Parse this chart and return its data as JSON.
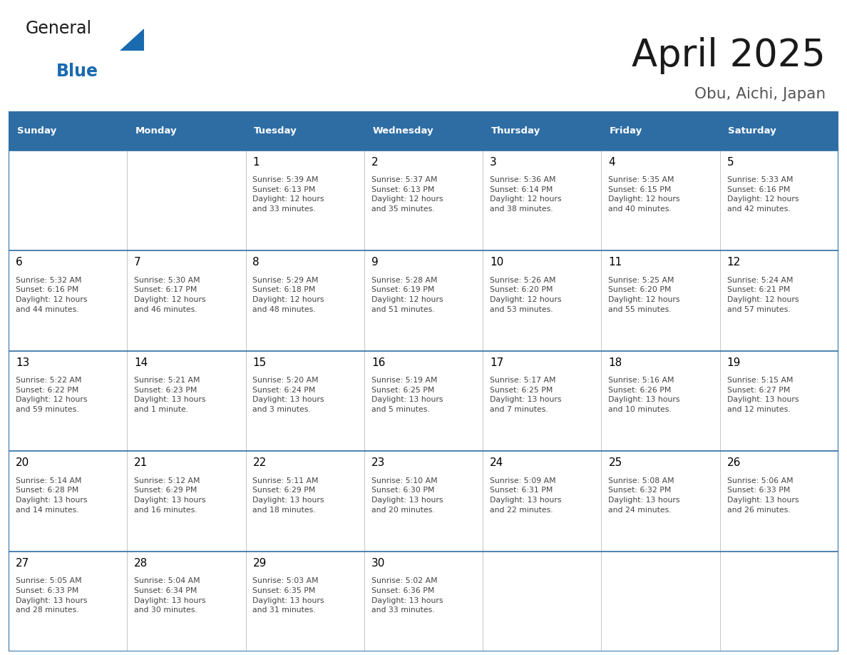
{
  "title": "April 2025",
  "subtitle": "Obu, Aichi, Japan",
  "header_bg_color": "#2E6DA4",
  "header_text_color": "#FFFFFF",
  "grid_line_color": "#2E6DA4",
  "day_number_color": "#000000",
  "cell_text_color": "#444444",
  "cell_bg_color": "#FFFFFF",
  "days_of_week": [
    "Sunday",
    "Monday",
    "Tuesday",
    "Wednesday",
    "Thursday",
    "Friday",
    "Saturday"
  ],
  "calendar_data": [
    [
      {
        "day": 0,
        "info": ""
      },
      {
        "day": 0,
        "info": ""
      },
      {
        "day": 1,
        "info": "Sunrise: 5:39 AM\nSunset: 6:13 PM\nDaylight: 12 hours\nand 33 minutes."
      },
      {
        "day": 2,
        "info": "Sunrise: 5:37 AM\nSunset: 6:13 PM\nDaylight: 12 hours\nand 35 minutes."
      },
      {
        "day": 3,
        "info": "Sunrise: 5:36 AM\nSunset: 6:14 PM\nDaylight: 12 hours\nand 38 minutes."
      },
      {
        "day": 4,
        "info": "Sunrise: 5:35 AM\nSunset: 6:15 PM\nDaylight: 12 hours\nand 40 minutes."
      },
      {
        "day": 5,
        "info": "Sunrise: 5:33 AM\nSunset: 6:16 PM\nDaylight: 12 hours\nand 42 minutes."
      }
    ],
    [
      {
        "day": 6,
        "info": "Sunrise: 5:32 AM\nSunset: 6:16 PM\nDaylight: 12 hours\nand 44 minutes."
      },
      {
        "day": 7,
        "info": "Sunrise: 5:30 AM\nSunset: 6:17 PM\nDaylight: 12 hours\nand 46 minutes."
      },
      {
        "day": 8,
        "info": "Sunrise: 5:29 AM\nSunset: 6:18 PM\nDaylight: 12 hours\nand 48 minutes."
      },
      {
        "day": 9,
        "info": "Sunrise: 5:28 AM\nSunset: 6:19 PM\nDaylight: 12 hours\nand 51 minutes."
      },
      {
        "day": 10,
        "info": "Sunrise: 5:26 AM\nSunset: 6:20 PM\nDaylight: 12 hours\nand 53 minutes."
      },
      {
        "day": 11,
        "info": "Sunrise: 5:25 AM\nSunset: 6:20 PM\nDaylight: 12 hours\nand 55 minutes."
      },
      {
        "day": 12,
        "info": "Sunrise: 5:24 AM\nSunset: 6:21 PM\nDaylight: 12 hours\nand 57 minutes."
      }
    ],
    [
      {
        "day": 13,
        "info": "Sunrise: 5:22 AM\nSunset: 6:22 PM\nDaylight: 12 hours\nand 59 minutes."
      },
      {
        "day": 14,
        "info": "Sunrise: 5:21 AM\nSunset: 6:23 PM\nDaylight: 13 hours\nand 1 minute."
      },
      {
        "day": 15,
        "info": "Sunrise: 5:20 AM\nSunset: 6:24 PM\nDaylight: 13 hours\nand 3 minutes."
      },
      {
        "day": 16,
        "info": "Sunrise: 5:19 AM\nSunset: 6:25 PM\nDaylight: 13 hours\nand 5 minutes."
      },
      {
        "day": 17,
        "info": "Sunrise: 5:17 AM\nSunset: 6:25 PM\nDaylight: 13 hours\nand 7 minutes."
      },
      {
        "day": 18,
        "info": "Sunrise: 5:16 AM\nSunset: 6:26 PM\nDaylight: 13 hours\nand 10 minutes."
      },
      {
        "day": 19,
        "info": "Sunrise: 5:15 AM\nSunset: 6:27 PM\nDaylight: 13 hours\nand 12 minutes."
      }
    ],
    [
      {
        "day": 20,
        "info": "Sunrise: 5:14 AM\nSunset: 6:28 PM\nDaylight: 13 hours\nand 14 minutes."
      },
      {
        "day": 21,
        "info": "Sunrise: 5:12 AM\nSunset: 6:29 PM\nDaylight: 13 hours\nand 16 minutes."
      },
      {
        "day": 22,
        "info": "Sunrise: 5:11 AM\nSunset: 6:29 PM\nDaylight: 13 hours\nand 18 minutes."
      },
      {
        "day": 23,
        "info": "Sunrise: 5:10 AM\nSunset: 6:30 PM\nDaylight: 13 hours\nand 20 minutes."
      },
      {
        "day": 24,
        "info": "Sunrise: 5:09 AM\nSunset: 6:31 PM\nDaylight: 13 hours\nand 22 minutes."
      },
      {
        "day": 25,
        "info": "Sunrise: 5:08 AM\nSunset: 6:32 PM\nDaylight: 13 hours\nand 24 minutes."
      },
      {
        "day": 26,
        "info": "Sunrise: 5:06 AM\nSunset: 6:33 PM\nDaylight: 13 hours\nand 26 minutes."
      }
    ],
    [
      {
        "day": 27,
        "info": "Sunrise: 5:05 AM\nSunset: 6:33 PM\nDaylight: 13 hours\nand 28 minutes."
      },
      {
        "day": 28,
        "info": "Sunrise: 5:04 AM\nSunset: 6:34 PM\nDaylight: 13 hours\nand 30 minutes."
      },
      {
        "day": 29,
        "info": "Sunrise: 5:03 AM\nSunset: 6:35 PM\nDaylight: 13 hours\nand 31 minutes."
      },
      {
        "day": 30,
        "info": "Sunrise: 5:02 AM\nSunset: 6:36 PM\nDaylight: 13 hours\nand 33 minutes."
      },
      {
        "day": 0,
        "info": ""
      },
      {
        "day": 0,
        "info": ""
      },
      {
        "day": 0,
        "info": ""
      }
    ]
  ],
  "logo_color_general": "#1a1a1a",
  "logo_color_blue": "#1a6aaf",
  "logo_triangle_color": "#1a6aaf",
  "title_color": "#1a1a1a",
  "subtitle_color": "#555555"
}
